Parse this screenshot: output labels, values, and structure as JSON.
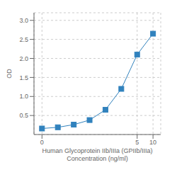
{
  "chart_data": {
    "type": "line",
    "x": [
      0.078,
      0.156,
      0.313,
      0.625,
      1.25,
      2.5,
      5.0,
      10.0
    ],
    "values": [
      0.158,
      0.19,
      0.26,
      0.38,
      0.65,
      1.2,
      2.1,
      2.65
    ],
    "marker": "square",
    "xlabel": "Human Glycoprotein IIb/IIIa (GPIIb/IIIa)\nConcentration (ng/ml)",
    "ylabel": "OD",
    "log": "x",
    "xlim": [
      0.055,
      14
    ],
    "xticks": [
      {
        "value": 0.078,
        "label": "0"
      },
      5,
      10
    ],
    "ylim": [
      0.0,
      3.2
    ],
    "yticks": [
      0.5,
      {
        "value": 1.0,
        "label": "1.0"
      },
      1.5,
      {
        "value": 2.0,
        "label": "2.0"
      },
      2.5,
      {
        "value": 3.0,
        "label": "3.0"
      }
    ],
    "grid": true
  }
}
